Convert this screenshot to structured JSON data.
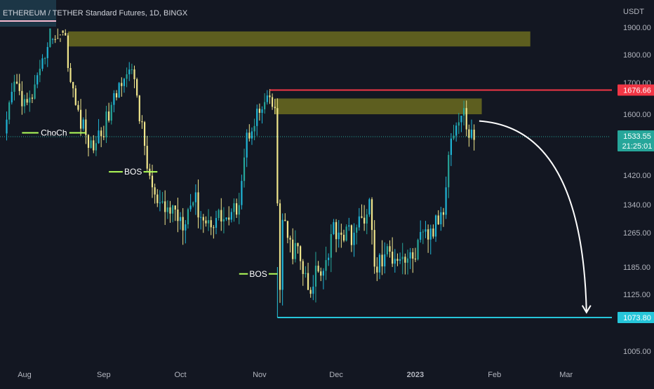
{
  "header": {
    "title": "ETHEREUM / TETHER Standard Futures, 1D, BINGX"
  },
  "colors": {
    "background": "#131722",
    "bull_candle": "#26a69a",
    "bull_candle_alt": "#1fb5d6",
    "bear_candle": "#f0e68c",
    "supply_zone": "#6b6b1f",
    "resistance_line": "#f23645",
    "target_line": "#26c6da",
    "structure_line": "#b2ff59",
    "arrow": "#ffffff",
    "current_price_line": "#26a69a"
  },
  "chart_data": {
    "type": "candlestick",
    "title": "ETHEREUM / TETHER Standard Futures, 1D, BINGX",
    "y_axis": {
      "label": "USDT",
      "ticks": [
        1900,
        1800,
        1700,
        1600,
        1420,
        1340,
        1265,
        1185,
        1125,
        1005
      ],
      "tick_labels": [
        "1900.00",
        "1800.00",
        "1700.00",
        "1600.00",
        "1420.00",
        "1340.00",
        "1265.00",
        "1185.00",
        "1125.00",
        "1005.00"
      ],
      "range": [
        950,
        2000
      ]
    },
    "x_axis": {
      "tick_labels": [
        "Aug",
        "Sep",
        "Oct",
        "Nov",
        "Dec",
        "2023",
        "Feb",
        "Mar"
      ],
      "start_date": "2022-07-24",
      "end_date": "2023-03-10"
    },
    "price_path": [
      [
        "2022-07-24",
        1520
      ],
      [
        "2022-07-28",
        1700
      ],
      [
        "2022-08-02",
        1620
      ],
      [
        "2022-08-07",
        1720
      ],
      [
        "2022-08-10",
        1850
      ],
      [
        "2022-08-13",
        1960
      ],
      [
        "2022-08-15",
        1900
      ],
      [
        "2022-08-17",
        1860
      ],
      [
        "2022-08-19",
        1700
      ],
      [
        "2022-08-22",
        1600
      ],
      [
        "2022-08-27",
        1500
      ],
      [
        "2022-09-01",
        1560
      ],
      [
        "2022-09-05",
        1640
      ],
      [
        "2022-09-09",
        1740
      ],
      [
        "2022-09-13",
        1720
      ],
      [
        "2022-09-15",
        1600
      ],
      [
        "2022-09-18",
        1450
      ],
      [
        "2022-09-21",
        1350
      ],
      [
        "2022-09-24",
        1320
      ],
      [
        "2022-09-28",
        1330
      ],
      [
        "2022-10-02",
        1300
      ],
      [
        "2022-10-06",
        1360
      ],
      [
        "2022-10-11",
        1290
      ],
      [
        "2022-10-16",
        1310
      ],
      [
        "2022-10-21",
        1300
      ],
      [
        "2022-10-24",
        1360
      ],
      [
        "2022-10-27",
        1530
      ],
      [
        "2022-10-30",
        1590
      ],
      [
        "2022-11-03",
        1620
      ],
      [
        "2022-11-05",
        1650
      ],
      [
        "2022-11-07",
        1600
      ],
      [
        "2022-11-08",
        1340
      ],
      [
        "2022-11-09",
        1150
      ],
      [
        "2022-11-10",
        1290
      ],
      [
        "2022-11-13",
        1230
      ],
      [
        "2022-11-16",
        1220
      ],
      [
        "2022-11-21",
        1110
      ],
      [
        "2022-11-23",
        1180
      ],
      [
        "2022-11-27",
        1200
      ],
      [
        "2022-11-30",
        1280
      ],
      [
        "2022-12-05",
        1260
      ],
      [
        "2022-12-09",
        1270
      ],
      [
        "2022-12-14",
        1340
      ],
      [
        "2022-12-16",
        1180
      ],
      [
        "2022-12-20",
        1210
      ],
      [
        "2022-12-25",
        1220
      ],
      [
        "2022-12-30",
        1200
      ],
      [
        "2023-01-04",
        1250
      ],
      [
        "2023-01-08",
        1270
      ],
      [
        "2023-01-12",
        1330
      ],
      [
        "2023-01-14",
        1500
      ],
      [
        "2023-01-17",
        1570
      ],
      [
        "2023-01-20",
        1600
      ],
      [
        "2023-01-22",
        1545
      ],
      [
        "2023-01-24",
        1535
      ]
    ],
    "zones": [
      {
        "type": "supply",
        "from": "2022-08-18",
        "to": "2023-02-15",
        "low": 1830,
        "high": 1885
      },
      {
        "type": "supply",
        "from": "2022-11-07",
        "to": "2023-01-27",
        "low": 1600,
        "high": 1650
      }
    ],
    "lines": [
      {
        "name": "resistance",
        "price": 1676.66,
        "from": "2022-11-05"
      },
      {
        "name": "target",
        "price": 1073.8,
        "from": "2022-11-08"
      },
      {
        "name": "current",
        "price": 1533.55,
        "from": "2022-07-24"
      }
    ],
    "structure_labels": [
      {
        "text": "ChoCh",
        "price": 1545,
        "from": "2022-07-31",
        "to": "2022-08-25"
      },
      {
        "text": "BOS",
        "price": 1430,
        "from": "2022-09-03",
        "to": "2022-09-22"
      },
      {
        "text": "BOS",
        "price": 1170,
        "from": "2022-10-24",
        "to": "2022-11-08"
      }
    ],
    "projection_arrow": {
      "from_date": "2023-01-26",
      "from_price": 1580,
      "to_date": "2023-03-09",
      "to_price": 1085
    },
    "price_tags": [
      {
        "price": 1676.66,
        "text": "1676.66",
        "style": "resistance"
      },
      {
        "price": 1533.55,
        "text": "1533.55",
        "subtext": "21:25:01",
        "style": "current"
      },
      {
        "price": 1073.8,
        "text": "1073.80",
        "style": "target"
      }
    ]
  }
}
